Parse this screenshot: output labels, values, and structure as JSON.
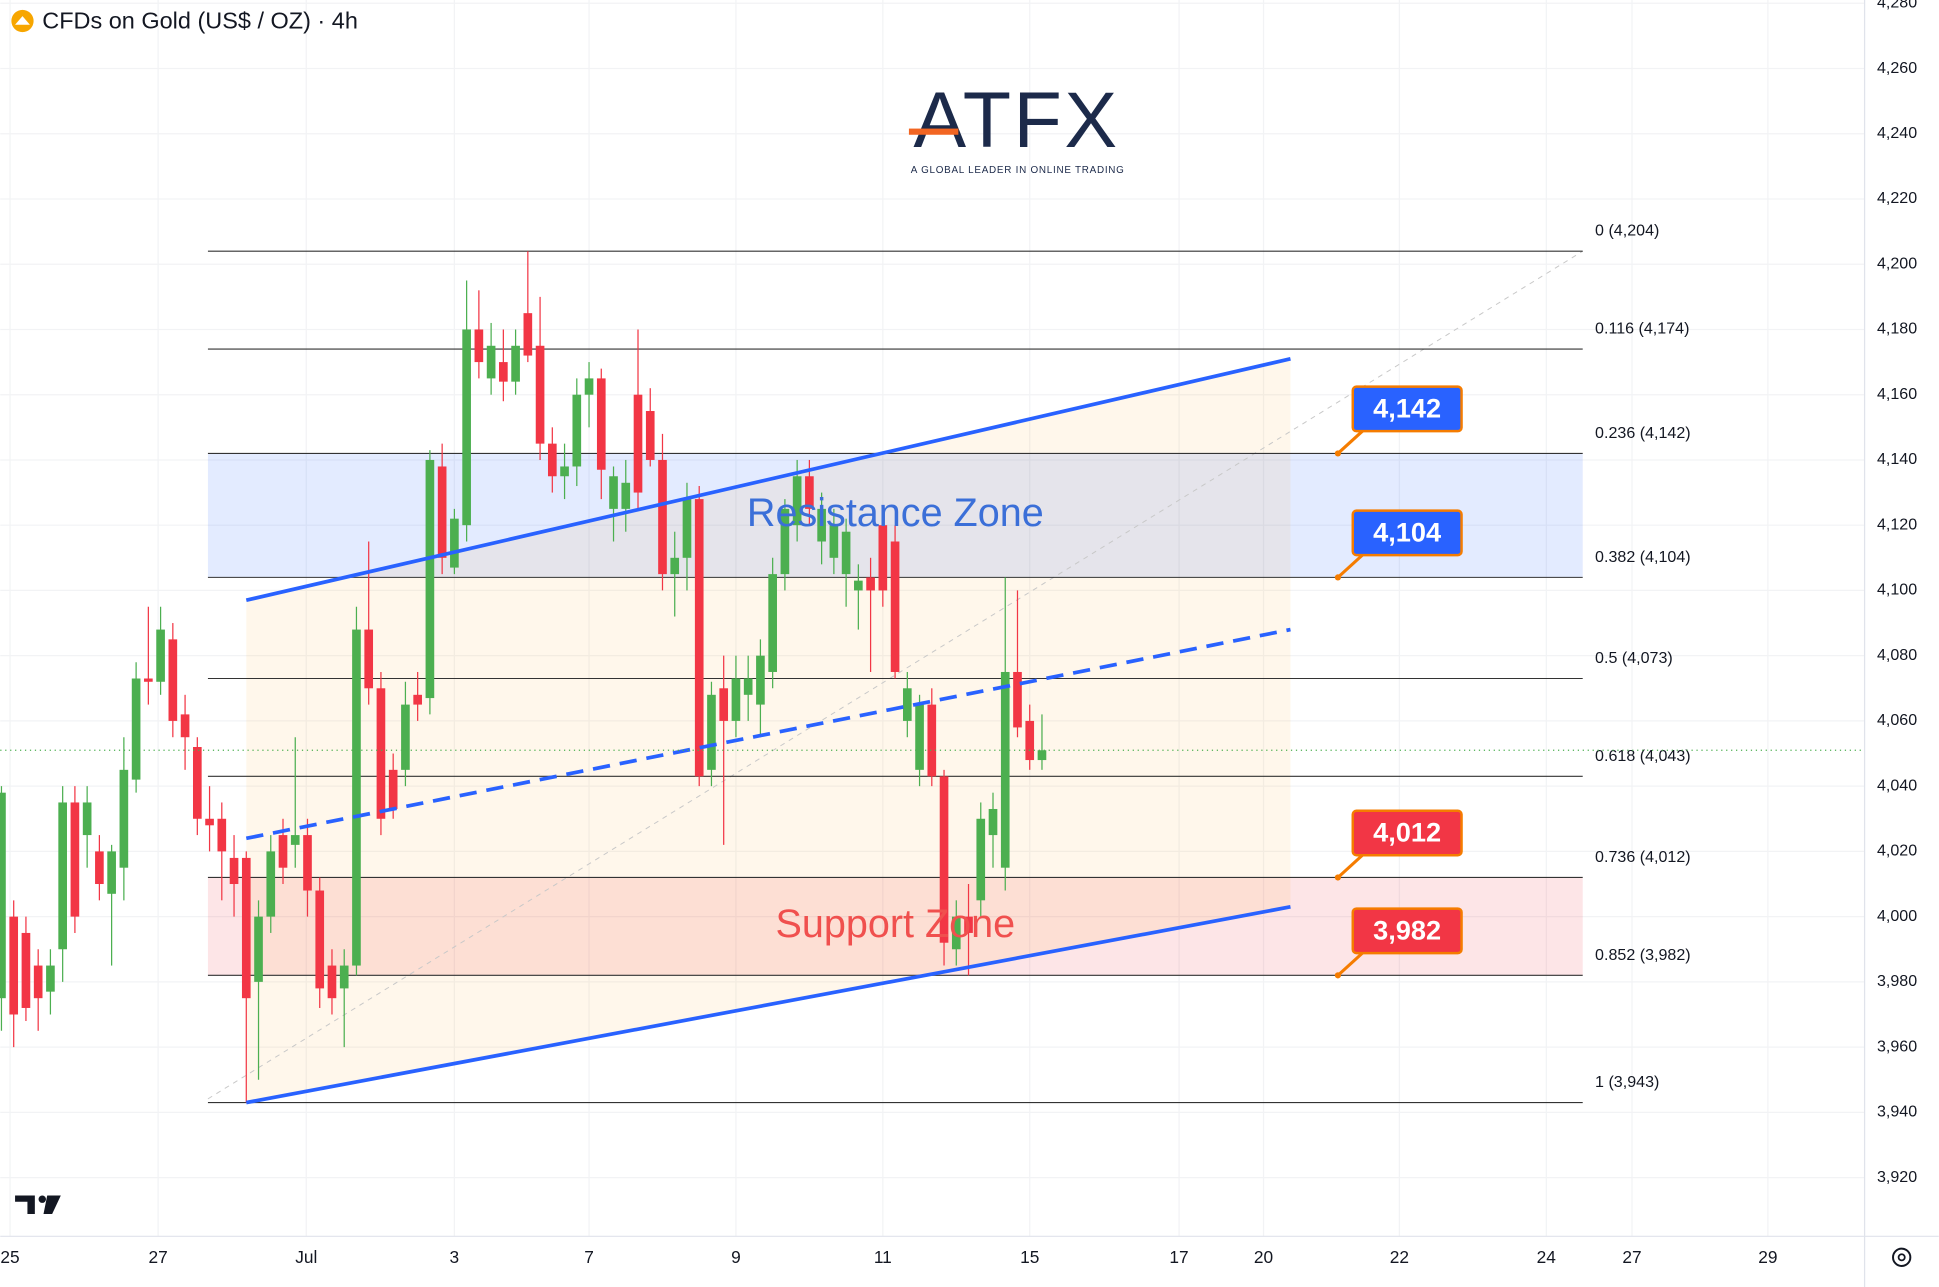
{
  "chart_data": {
    "type": "candlestick",
    "title": "CFDs on Gold (US$ / OZ) · 4h",
    "logo": {
      "text": "ATFX",
      "tagline": "A GLOBAL LEADER IN ONLINE TRADING"
    },
    "up_color": "#4caf50",
    "down_color": "#f23645",
    "ylim": [
      3902,
      4281
    ],
    "yticks": [
      {
        "value": 3920,
        "label": "3,920"
      },
      {
        "value": 3940,
        "label": "3,940"
      },
      {
        "value": 3960,
        "label": "3,960"
      },
      {
        "value": 3980,
        "label": "3,980"
      },
      {
        "value": 4000,
        "label": "4,000"
      },
      {
        "value": 4020,
        "label": "4,020"
      },
      {
        "value": 4040,
        "label": "4,040"
      },
      {
        "value": 4060,
        "label": "4,060"
      },
      {
        "value": 4080,
        "label": "4,080"
      },
      {
        "value": 4100,
        "label": "4,100"
      },
      {
        "value": 4120,
        "label": "4,120"
      },
      {
        "value": 4140,
        "label": "4,140"
      },
      {
        "value": 4160,
        "label": "4,160"
      },
      {
        "value": 4180,
        "label": "4,180"
      },
      {
        "value": 4200,
        "label": "4,200"
      },
      {
        "value": 4220,
        "label": "4,220"
      },
      {
        "value": 4240,
        "label": "4,240"
      },
      {
        "value": 4260,
        "label": "4,260"
      },
      {
        "value": 4280,
        "label": "4,280"
      }
    ],
    "xlim": [
      -0.1,
      152.2
    ],
    "xticks": [
      {
        "value": 0.7,
        "label": "25"
      },
      {
        "value": 12.8,
        "label": "27"
      },
      {
        "value": 24.9,
        "label": "Jul"
      },
      {
        "value": 37,
        "label": "3"
      },
      {
        "value": 48,
        "label": "7"
      },
      {
        "value": 60,
        "label": "9"
      },
      {
        "value": 72,
        "label": "11"
      },
      {
        "value": 84,
        "label": "15"
      },
      {
        "value": 96.2,
        "label": "17"
      },
      {
        "value": 103.1,
        "label": "20"
      },
      {
        "value": 114.2,
        "label": "22"
      },
      {
        "value": 126.2,
        "label": "24"
      },
      {
        "value": 133.2,
        "label": "27"
      },
      {
        "value": 144.3,
        "label": "29"
      }
    ],
    "open": [
      3975,
      4000,
      3995,
      3985,
      3977,
      3990,
      4035,
      4025,
      4020,
      4007,
      4015,
      4042,
      4073,
      4072,
      4085,
      4062,
      4052,
      4030,
      4030,
      4018,
      4018,
      3980,
      4000,
      4025,
      4022,
      4025,
      4008,
      3985,
      3978,
      3985,
      4088,
      4070,
      4045,
      4045,
      4068,
      4067,
      4138,
      4107,
      4120,
      4180,
      4165,
      4170,
      4164,
      4185,
      4175,
      4145,
      4135,
      4138,
      4160,
      4165,
      4125,
      4125,
      4160,
      4155,
      4140,
      4105,
      4110,
      4128,
      4045,
      4070,
      4060,
      4068,
      4065,
      4075,
      4105,
      4120,
      4135,
      4115,
      4110,
      4105,
      4100,
      4104,
      4120,
      4115,
      4060,
      4045,
      4065,
      4043,
      3990,
      4000,
      4005,
      4025,
      4015,
      4075,
      4060,
      4048
    ],
    "high": [
      4040,
      4005,
      4000,
      3990,
      3990,
      4040,
      4040,
      4040,
      4025,
      4022,
      4055,
      4078,
      4095,
      4095,
      4090,
      4068,
      4055,
      4040,
      4035,
      4025,
      4020,
      4005,
      4025,
      4030,
      4055,
      4030,
      4012,
      3990,
      3990,
      4095,
      4115,
      4075,
      4050,
      4072,
      4075,
      4143,
      4145,
      4125,
      4195,
      4192,
      4182,
      4180,
      4180,
      4204,
      4190,
      4150,
      4145,
      4165,
      4170,
      4168,
      4138,
      4140,
      4180,
      4162,
      4148,
      4118,
      4133,
      4132,
      4072,
      4080,
      4080,
      4080,
      4085,
      4110,
      4128,
      4140,
      4140,
      4130,
      4125,
      4122,
      4108,
      4110,
      4122,
      4120,
      4075,
      4068,
      4070,
      4045,
      4005,
      4010,
      4035,
      4038,
      4104,
      4100,
      4065,
      4062
    ],
    "low": [
      3965,
      3960,
      3968,
      3965,
      3970,
      3980,
      3995,
      4015,
      4005,
      3985,
      4005,
      4038,
      4065,
      4068,
      4055,
      4045,
      4025,
      4020,
      4005,
      4000,
      3943,
      3950,
      3995,
      4010,
      4015,
      4000,
      3972,
      3970,
      3960,
      3982,
      4065,
      4025,
      4030,
      4040,
      4060,
      4062,
      4105,
      4105,
      4115,
      4165,
      4160,
      4158,
      4160,
      4170,
      4140,
      4130,
      4128,
      4132,
      4150,
      4128,
      4115,
      4118,
      4125,
      4138,
      4100,
      4092,
      4100,
      4040,
      4040,
      4022,
      4055,
      4060,
      4055,
      4070,
      4100,
      4115,
      4120,
      4108,
      4105,
      4095,
      4088,
      4075,
      4095,
      4073,
      4055,
      4040,
      4040,
      3985,
      3985,
      3982,
      4000,
      4015,
      4008,
      4055,
      4045,
      4045
    ],
    "close": [
      4038,
      3970,
      3972,
      3975,
      3985,
      4035,
      4000,
      4035,
      4010,
      4020,
      4045,
      4073,
      4072,
      4088,
      4060,
      4055,
      4030,
      4028,
      4020,
      4010,
      3975,
      4000,
      4020,
      4015,
      4025,
      4008,
      3978,
      3975,
      3985,
      4088,
      4070,
      4030,
      4033,
      4065,
      4065,
      4140,
      4110,
      4122,
      4180,
      4170,
      4175,
      4164,
      4175,
      4172,
      4145,
      4135,
      4138,
      4160,
      4165,
      4137,
      4135,
      4133,
      4130,
      4140,
      4105,
      4110,
      4128,
      4043,
      4068,
      4060,
      4073,
      4073,
      4080,
      4105,
      4125,
      4135,
      4125,
      4125,
      4120,
      4118,
      4103,
      4100,
      4100,
      4075,
      4070,
      4065,
      4043,
      3992,
      4000,
      3995,
      4030,
      4033,
      4075,
      4058,
      4048,
      4051
    ],
    "fib_levels": [
      {
        "label": "0 (4,204)",
        "value": 4204
      },
      {
        "label": "0.116 (4,174)",
        "value": 4174
      },
      {
        "label": "0.236 (4,142)",
        "value": 4142
      },
      {
        "label": "0.382 (4,104)",
        "value": 4104
      },
      {
        "label": "0.5 (4,073)",
        "value": 4073
      },
      {
        "label": "0.618 (4,043)",
        "value": 4043
      },
      {
        "label": "0.736 (4,012)",
        "value": 4012
      },
      {
        "label": "0.852 (3,982)",
        "value": 3982
      },
      {
        "label": "1 (3,943)",
        "value": 3943
      }
    ],
    "zones": [
      {
        "label": "Resistance Zone",
        "from": 4104,
        "to": 4142,
        "color": "#2962ff",
        "text_color": "#3b6fd8"
      },
      {
        "label": "Support Zone",
        "from": 3982,
        "to": 4012,
        "color": "#f23645",
        "text_color": "#f0504e"
      }
    ],
    "price_tags": [
      {
        "value": 4142,
        "label": "4,142",
        "color": "#2962ff"
      },
      {
        "value": 4104,
        "label": "4,104",
        "color": "#2962ff"
      },
      {
        "value": 4012,
        "label": "4,012",
        "color": "#f23645"
      },
      {
        "value": 3982,
        "label": "3,982",
        "color": "#f23645"
      }
    ],
    "channel": {
      "color": "#2962ff",
      "lines": [
        {
          "style": "solid",
          "start": [
            20,
            4097
          ],
          "end": [
            105.3,
            4171
          ]
        },
        {
          "style": "dashed",
          "start": [
            20,
            4024
          ],
          "end": [
            105.3,
            4088
          ]
        },
        {
          "style": "solid",
          "start": [
            20,
            3943
          ],
          "end": [
            105.3,
            4003
          ]
        }
      ]
    }
  }
}
